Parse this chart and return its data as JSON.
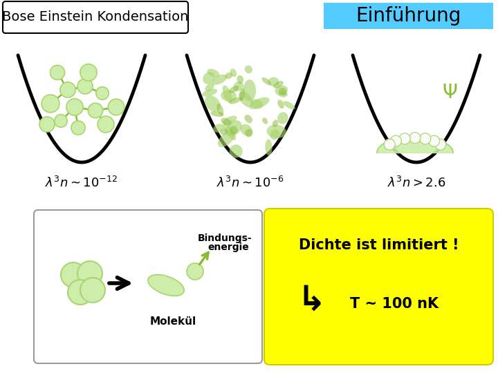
{
  "background_color": "#ffffff",
  "title_box_text": "Bose Einstein Kondensation",
  "title_box_bg": "#ffffff",
  "title_box_border": "#000000",
  "header_text": "Einführung",
  "header_bg": "#55ccff",
  "pot_color": "#000000",
  "pot_lw": 3.5,
  "green_light": "#cceeaa",
  "green_mid": "#aad470",
  "green_dark": "#88bb33",
  "psi_color": "#88bb33",
  "molecule_box_border": "#aaaaaa",
  "molecule_box_bg": "#ffffff",
  "bind_label1": "Bindungs-",
  "bind_label2": "energie",
  "molekul_label": "Molekül",
  "yellow_box_bg": "#ffff00",
  "yellow_box_border": "#cccc00",
  "dichte_line1": "Dichte ist limitiert !",
  "dichte_line2": "T ~ 100 nK",
  "header_fontsize": 20,
  "title_fontsize": 14,
  "label_fontsize": 13
}
